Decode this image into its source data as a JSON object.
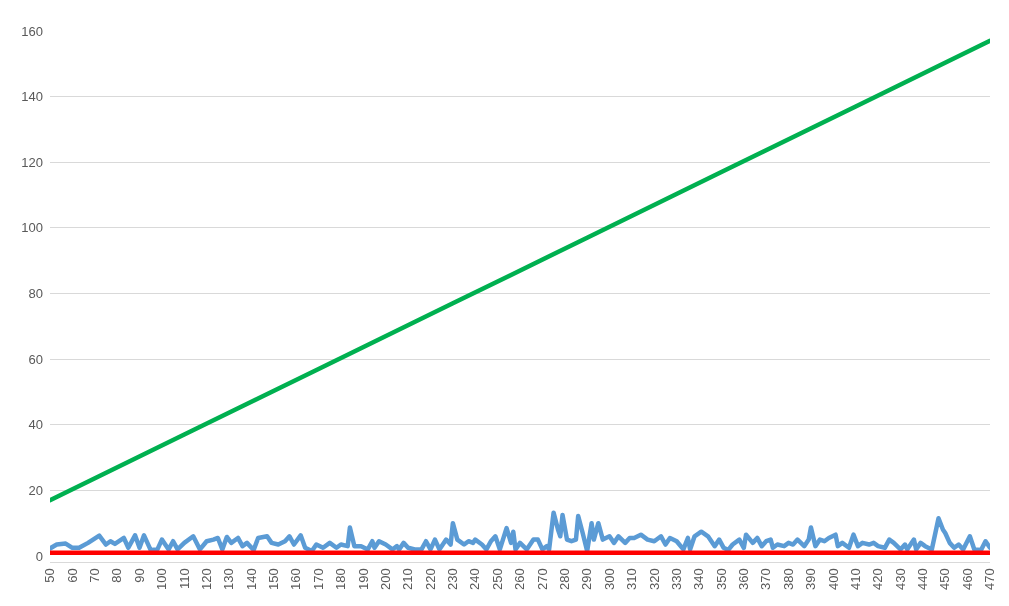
{
  "chart_data": {
    "type": "line",
    "series": [
      {
        "color": "#00b050",
        "x": [
          50,
          110,
          170,
          230,
          290,
          350,
          410,
          470
        ],
        "values": [
          17,
          37,
          57,
          77,
          97,
          117,
          137,
          157
        ]
      },
      {
        "color": "#5b9bd5",
        "x": [
          50,
          53,
          57,
          60,
          63,
          67,
          72,
          75,
          77,
          79,
          83,
          85,
          88,
          90,
          92,
          95,
          98,
          100,
          103,
          105,
          107,
          110,
          114,
          117,
          120,
          123,
          125,
          127,
          129,
          131,
          134,
          136,
          138,
          141,
          143,
          147,
          149,
          152,
          155,
          157,
          159,
          162,
          164,
          167,
          169,
          172,
          175,
          178,
          180,
          183,
          184,
          186,
          189,
          192,
          194,
          195,
          197,
          200,
          203,
          205,
          206,
          208,
          210,
          213,
          216,
          218,
          220,
          222,
          224,
          227,
          229,
          230,
          232,
          235,
          237,
          239,
          240,
          243,
          245,
          247,
          249,
          251,
          254,
          256,
          257,
          258,
          260,
          263,
          266,
          268,
          270,
          272,
          273,
          275,
          277,
          278,
          279,
          281,
          283,
          285,
          286,
          288,
          290,
          292,
          293,
          295,
          297,
          300,
          302,
          304,
          307,
          309,
          311,
          314,
          317,
          320,
          323,
          325,
          327,
          330,
          333,
          335,
          336,
          338,
          341,
          344,
          347,
          349,
          351,
          353,
          355,
          358,
          360,
          361,
          364,
          366,
          368,
          370,
          372,
          373,
          375,
          378,
          380,
          382,
          384,
          387,
          389,
          390,
          392,
          394,
          396,
          398,
          401,
          402,
          404,
          407,
          409,
          411,
          413,
          416,
          418,
          420,
          423,
          425,
          427,
          430,
          432,
          433,
          436,
          437,
          439,
          441,
          444,
          447,
          449,
          450,
          452,
          454,
          456,
          458,
          461,
          463,
          466,
          468,
          470
        ],
        "values": [
          2.3,
          3.5,
          3.8,
          2.5,
          2.5,
          4,
          6.2,
          3.5,
          4.5,
          3.7,
          5.5,
          2.5,
          6.3,
          2.5,
          6.3,
          1.8,
          2,
          5,
          2,
          4.5,
          2,
          4,
          6,
          2,
          4.5,
          5,
          5.5,
          2,
          5.8,
          4,
          5.5,
          3,
          4,
          1.8,
          5.5,
          6,
          4,
          3.5,
          4.5,
          6,
          3.5,
          6.3,
          2.5,
          1.5,
          3.5,
          2.5,
          4,
          2.5,
          3.5,
          3,
          8.7,
          3,
          3,
          2,
          4.5,
          2.5,
          4.5,
          3.5,
          2,
          3,
          2,
          4,
          2.5,
          2,
          2,
          4.5,
          2,
          5,
          2,
          5,
          3.5,
          10,
          5,
          3.5,
          4.5,
          4,
          5,
          3.5,
          2,
          4.5,
          6,
          2,
          8.5,
          4,
          7.4,
          2,
          4,
          2,
          5,
          5,
          2,
          3,
          2,
          13.2,
          8,
          6,
          12.5,
          5,
          4.5,
          5,
          12.2,
          7,
          1.5,
          10,
          5,
          10,
          5,
          6,
          4,
          6,
          4,
          5.5,
          5.5,
          6.5,
          5,
          4.5,
          6,
          3.5,
          5.5,
          4.5,
          2,
          5.5,
          2,
          6,
          7.4,
          6,
          3,
          5,
          2.5,
          1.8,
          3.5,
          5,
          2.5,
          6.5,
          4,
          5.5,
          3,
          4.5,
          5,
          2.5,
          3.5,
          3,
          4,
          3.5,
          5,
          3,
          5,
          8.7,
          3,
          5,
          4.5,
          5.5,
          6.5,
          3,
          4,
          2.5,
          6.5,
          3,
          4,
          3.5,
          4,
          3,
          2.5,
          5,
          4,
          2,
          3.5,
          2,
          5,
          2,
          4,
          3,
          2,
          11.5,
          8,
          7,
          4,
          2.5,
          3.5,
          2,
          6,
          2,
          1.8,
          4.5,
          2.5
        ]
      },
      {
        "color": "#ff0000",
        "x": [
          50,
          470
        ],
        "values": [
          1,
          1
        ]
      }
    ],
    "xlim": [
      50,
      470
    ],
    "xticks": [
      50,
      60,
      70,
      80,
      90,
      100,
      110,
      120,
      130,
      140,
      150,
      160,
      170,
      180,
      190,
      200,
      210,
      220,
      230,
      240,
      250,
      260,
      270,
      280,
      290,
      300,
      310,
      320,
      330,
      340,
      350,
      360,
      370,
      380,
      390,
      400,
      410,
      420,
      430,
      440,
      450,
      460,
      470
    ],
    "ylim": [
      0,
      160
    ],
    "yticks": [
      0,
      20,
      40,
      60,
      80,
      100,
      120,
      140,
      160
    ],
    "grid": "y",
    "line_style": "solid"
  }
}
